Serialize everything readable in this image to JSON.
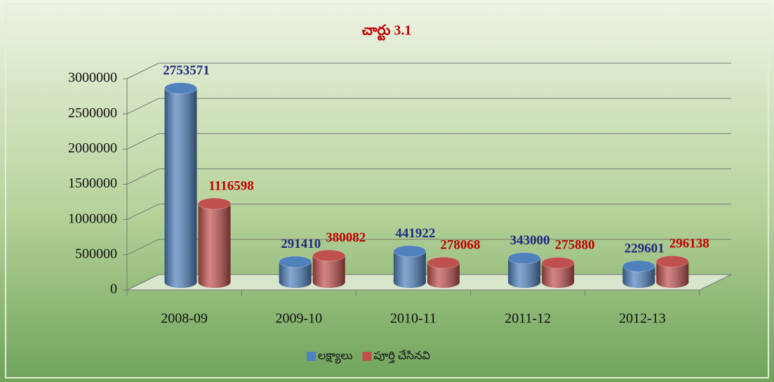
{
  "chart_data": {
    "type": "bar3d",
    "title": "చార్టు 3.1",
    "categories": [
      "2008-09",
      "2009-10",
      "2010-11",
      "2011-12",
      "2012-13"
    ],
    "series": [
      {
        "name": "లక్ష్యాలు",
        "color": "#4f81bd",
        "values": [
          2753571,
          291410,
          441922,
          343000,
          229601
        ]
      },
      {
        "name": "పూర్తి చేసినవి",
        "color": "#c0504d",
        "values": [
          1116598,
          380082,
          278068,
          275880,
          296138
        ]
      }
    ],
    "ylim": [
      0,
      3000000
    ],
    "yticks": [
      0,
      500000,
      1000000,
      1500000,
      2000000,
      2500000,
      3000000
    ],
    "grid": true,
    "legend": "bottom"
  }
}
